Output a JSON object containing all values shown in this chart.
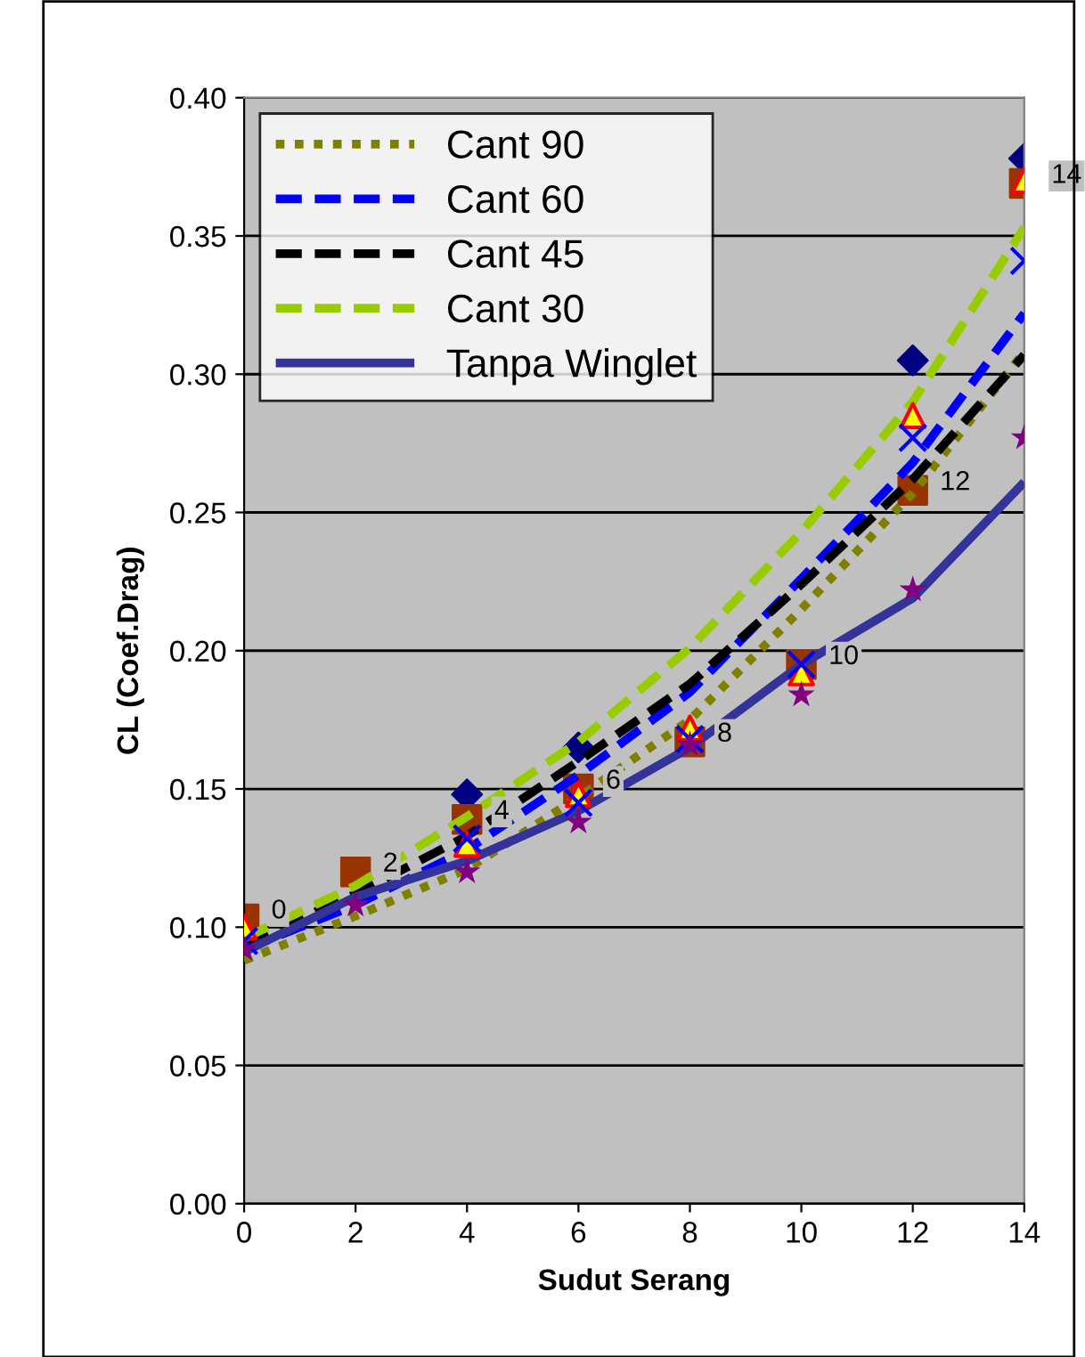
{
  "chart_data": {
    "type": "scatter",
    "xlabel": "Sudut Serang",
    "ylabel": "CL (Coef.Drag)",
    "xlim": [
      0,
      14
    ],
    "xticks": [
      0,
      2,
      4,
      6,
      8,
      10,
      12,
      14
    ],
    "ylim": [
      0,
      0.4
    ],
    "yticks": [
      {
        "value": 0,
        "label": "0.00"
      },
      {
        "value": 0.05,
        "label": "0.05"
      },
      {
        "value": 0.1,
        "label": "0.10"
      },
      {
        "value": 0.15,
        "label": "0.15"
      },
      {
        "value": 0.2,
        "label": "0.20"
      },
      {
        "value": 0.25,
        "label": "0.25"
      },
      {
        "value": 0.3,
        "label": "0.30"
      },
      {
        "value": 0.35,
        "label": "0.35"
      },
      {
        "value": 0.4,
        "label": "0.40"
      }
    ],
    "grid": "y",
    "legend": "top left",
    "annotations": [
      {
        "text": "0",
        "x": 0,
        "y": 0.103
      },
      {
        "text": "2",
        "x": 2,
        "y": 0.12
      },
      {
        "text": "4",
        "x": 4,
        "y": 0.139
      },
      {
        "text": "6",
        "x": 6,
        "y": 0.15
      },
      {
        "text": "8",
        "x": 8,
        "y": 0.167
      },
      {
        "text": "10",
        "x": 10,
        "y": 0.195
      },
      {
        "text": "12",
        "x": 12,
        "y": 0.258
      },
      {
        "text": "14",
        "x": 14,
        "y": 0.369
      }
    ],
    "series": [
      {
        "color": "#000080",
        "marker": "diamond",
        "x": [
          4,
          6,
          12,
          14
        ],
        "values": [
          0.148,
          0.165,
          0.305,
          0.378
        ]
      },
      {
        "color": "#993300",
        "marker": "square",
        "x": [
          0,
          2,
          4,
          6,
          8,
          10,
          12,
          14
        ],
        "values": [
          0.103,
          0.12,
          0.139,
          0.15,
          0.167,
          0.195,
          0.258,
          0.369
        ]
      },
      {
        "color": "#ffff00",
        "marker": "triangle",
        "x": [
          0,
          4,
          6,
          8,
          10,
          12,
          14
        ],
        "values": [
          0.1,
          0.13,
          0.148,
          0.172,
          0.192,
          0.285,
          0.37
        ]
      },
      {
        "color": "#0000ff",
        "marker": "cross",
        "x": [
          0,
          4,
          6,
          8,
          10,
          12,
          14
        ],
        "values": [
          0.095,
          0.132,
          0.145,
          0.168,
          0.195,
          0.277,
          0.341
        ]
      },
      {
        "color": "#800080",
        "marker": "star",
        "x": [
          0,
          2,
          4,
          6,
          8,
          10,
          12,
          14
        ],
        "values": [
          0.092,
          0.108,
          0.12,
          0.138,
          0.166,
          0.184,
          0.222,
          0.277
        ]
      },
      {
        "type": "line",
        "name": "Cant 90",
        "color": "#808000",
        "line_style": "dotted",
        "x": [
          0,
          2,
          4,
          6,
          8,
          10,
          12,
          14
        ],
        "values": [
          0.088,
          0.104,
          0.121,
          0.147,
          0.175,
          0.215,
          0.257,
          0.308
        ]
      },
      {
        "type": "line",
        "name": "Cant 60",
        "color": "#0000ff",
        "line_style": "dashed",
        "x": [
          0,
          2,
          4,
          6,
          8,
          10,
          12,
          14
        ],
        "values": [
          0.092,
          0.108,
          0.128,
          0.155,
          0.185,
          0.226,
          0.268,
          0.322
        ]
      },
      {
        "type": "line",
        "name": "Cant 45",
        "color": "#000000",
        "line_style": "dashed",
        "x": [
          0,
          2,
          4,
          6,
          8,
          10,
          12,
          14
        ],
        "values": [
          0.094,
          0.112,
          0.133,
          0.16,
          0.188,
          0.224,
          0.262,
          0.307
        ]
      },
      {
        "type": "line",
        "name": "Cant 30",
        "color": "#99cc00",
        "line_style": "dashed",
        "x": [
          0,
          2,
          4,
          6,
          8,
          10,
          12,
          14
        ],
        "values": [
          0.096,
          0.115,
          0.14,
          0.167,
          0.201,
          0.243,
          0.29,
          0.353
        ]
      },
      {
        "type": "line",
        "name": "Tanpa Winglet",
        "color": "#333399",
        "line_style": "solid",
        "x": [
          0,
          2,
          4,
          6,
          8,
          10,
          12,
          14
        ],
        "values": [
          0.091,
          0.111,
          0.124,
          0.142,
          0.165,
          0.195,
          0.219,
          0.261
        ]
      }
    ]
  }
}
